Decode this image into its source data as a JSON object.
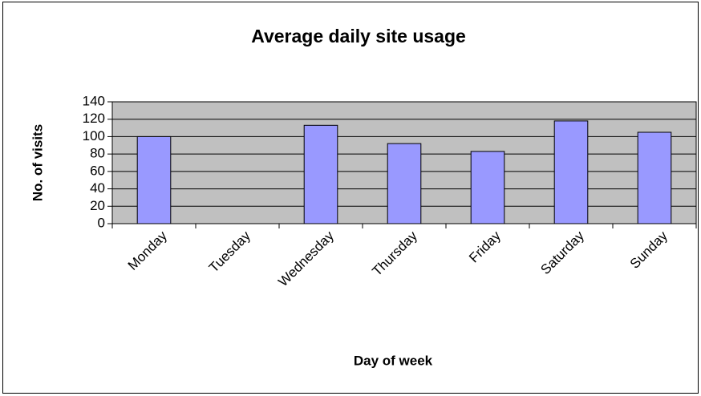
{
  "chart_data": {
    "type": "bar",
    "title": "Average daily site usage",
    "x_label": "Day of week",
    "y_label": "No. of visits",
    "categories": [
      "Monday",
      "Tuesday",
      "Wednesday",
      "Thursday",
      "Friday",
      "Saturday",
      "Sunday"
    ],
    "values": [
      100,
      null,
      113,
      92,
      83,
      118,
      105
    ],
    "color": "#9999ff",
    "background": "#c0c0c0",
    "ylim": [
      0,
      140
    ],
    "yticks": [
      0,
      20,
      40,
      60,
      80,
      100,
      120,
      140
    ],
    "grid": true
  }
}
